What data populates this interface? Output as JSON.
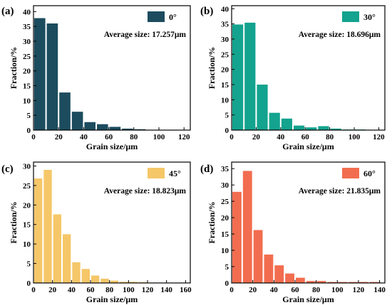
{
  "chart_data": [
    {
      "type": "bar",
      "panel_label": "(a)",
      "legend": "0°",
      "color": "#1c4c5e",
      "annotation": "Average size: 17.257μm",
      "xlabel": "Grain size/μm",
      "ylabel": "Fraction/%",
      "xlim": [
        0,
        125
      ],
      "ylim": [
        0,
        42
      ],
      "xticks": [
        0,
        20,
        40,
        60,
        80,
        100,
        120
      ],
      "yticks": [
        0,
        5,
        10,
        15,
        20,
        25,
        30,
        35,
        40
      ],
      "bin_width": 10,
      "x": [
        5,
        15,
        25,
        35,
        45,
        55,
        65,
        75,
        85,
        95,
        105,
        115
      ],
      "values": [
        37.8,
        36.0,
        12.7,
        6.2,
        2.7,
        2.0,
        1.1,
        0.5,
        0.3,
        0.1,
        0.1,
        0.1
      ],
      "legend_position": "top-right"
    },
    {
      "type": "bar",
      "panel_label": "(b)",
      "legend": "30°",
      "color": "#13a38e",
      "annotation": "Average size: 18.696μm",
      "xlabel": "Grain size/μm",
      "ylabel": "Fraction/%",
      "xlim": [
        0,
        125
      ],
      "ylim": [
        0,
        41
      ],
      "xticks": [
        0,
        20,
        40,
        60,
        80,
        100,
        120
      ],
      "yticks": [
        0,
        5,
        10,
        15,
        20,
        25,
        30,
        35,
        40
      ],
      "bin_width": 10,
      "x": [
        5,
        15,
        25,
        35,
        45,
        55,
        65,
        75,
        85,
        95,
        105,
        115
      ],
      "values": [
        34.8,
        35.4,
        15.0,
        5.7,
        3.8,
        1.5,
        0.9,
        1.3,
        0.5,
        0.2,
        0.2,
        0.1
      ],
      "legend_position": "top-right"
    },
    {
      "type": "bar",
      "panel_label": "(c)",
      "legend": "45°",
      "color": "#f5c769",
      "annotation": "Average size: 18.823μm",
      "xlabel": "Grain size/μm",
      "ylabel": "Fraction/%",
      "xlim": [
        0,
        165
      ],
      "ylim": [
        0,
        31
      ],
      "xticks": [
        0,
        20,
        40,
        60,
        80,
        100,
        120,
        140,
        160
      ],
      "yticks": [
        0,
        5,
        10,
        15,
        20,
        25,
        30
      ],
      "bin_width": 10,
      "x": [
        5,
        15,
        25,
        35,
        45,
        55,
        65,
        75,
        85,
        95,
        105,
        115,
        125,
        135,
        145,
        155
      ],
      "values": [
        26.8,
        29.0,
        17.6,
        12.5,
        5.3,
        3.6,
        1.9,
        1.1,
        0.6,
        0.3,
        0.3,
        0.2,
        0.1,
        0.1,
        0.1,
        0.1
      ],
      "legend_position": "top-right"
    },
    {
      "type": "bar",
      "panel_label": "(d)",
      "legend": "60°",
      "color": "#f26d4f",
      "annotation": "Average size: 21.835μm",
      "xlabel": "Grain size/μm",
      "ylabel": "Fraction/%",
      "xlim": [
        0,
        145
      ],
      "ylim": [
        0,
        37
      ],
      "xticks": [
        0,
        20,
        40,
        60,
        80,
        100,
        120,
        140
      ],
      "yticks": [
        0,
        5,
        10,
        15,
        20,
        25,
        30,
        35
      ],
      "bin_width": 10,
      "x": [
        5,
        15,
        25,
        35,
        45,
        55,
        65,
        75,
        85,
        95,
        105,
        115,
        125,
        135
      ],
      "values": [
        27.9,
        34.3,
        16.2,
        8.7,
        5.4,
        2.9,
        1.6,
        0.6,
        0.6,
        0.3,
        0.3,
        0.3,
        0.3,
        0.3
      ],
      "legend_position": "top-right"
    }
  ]
}
